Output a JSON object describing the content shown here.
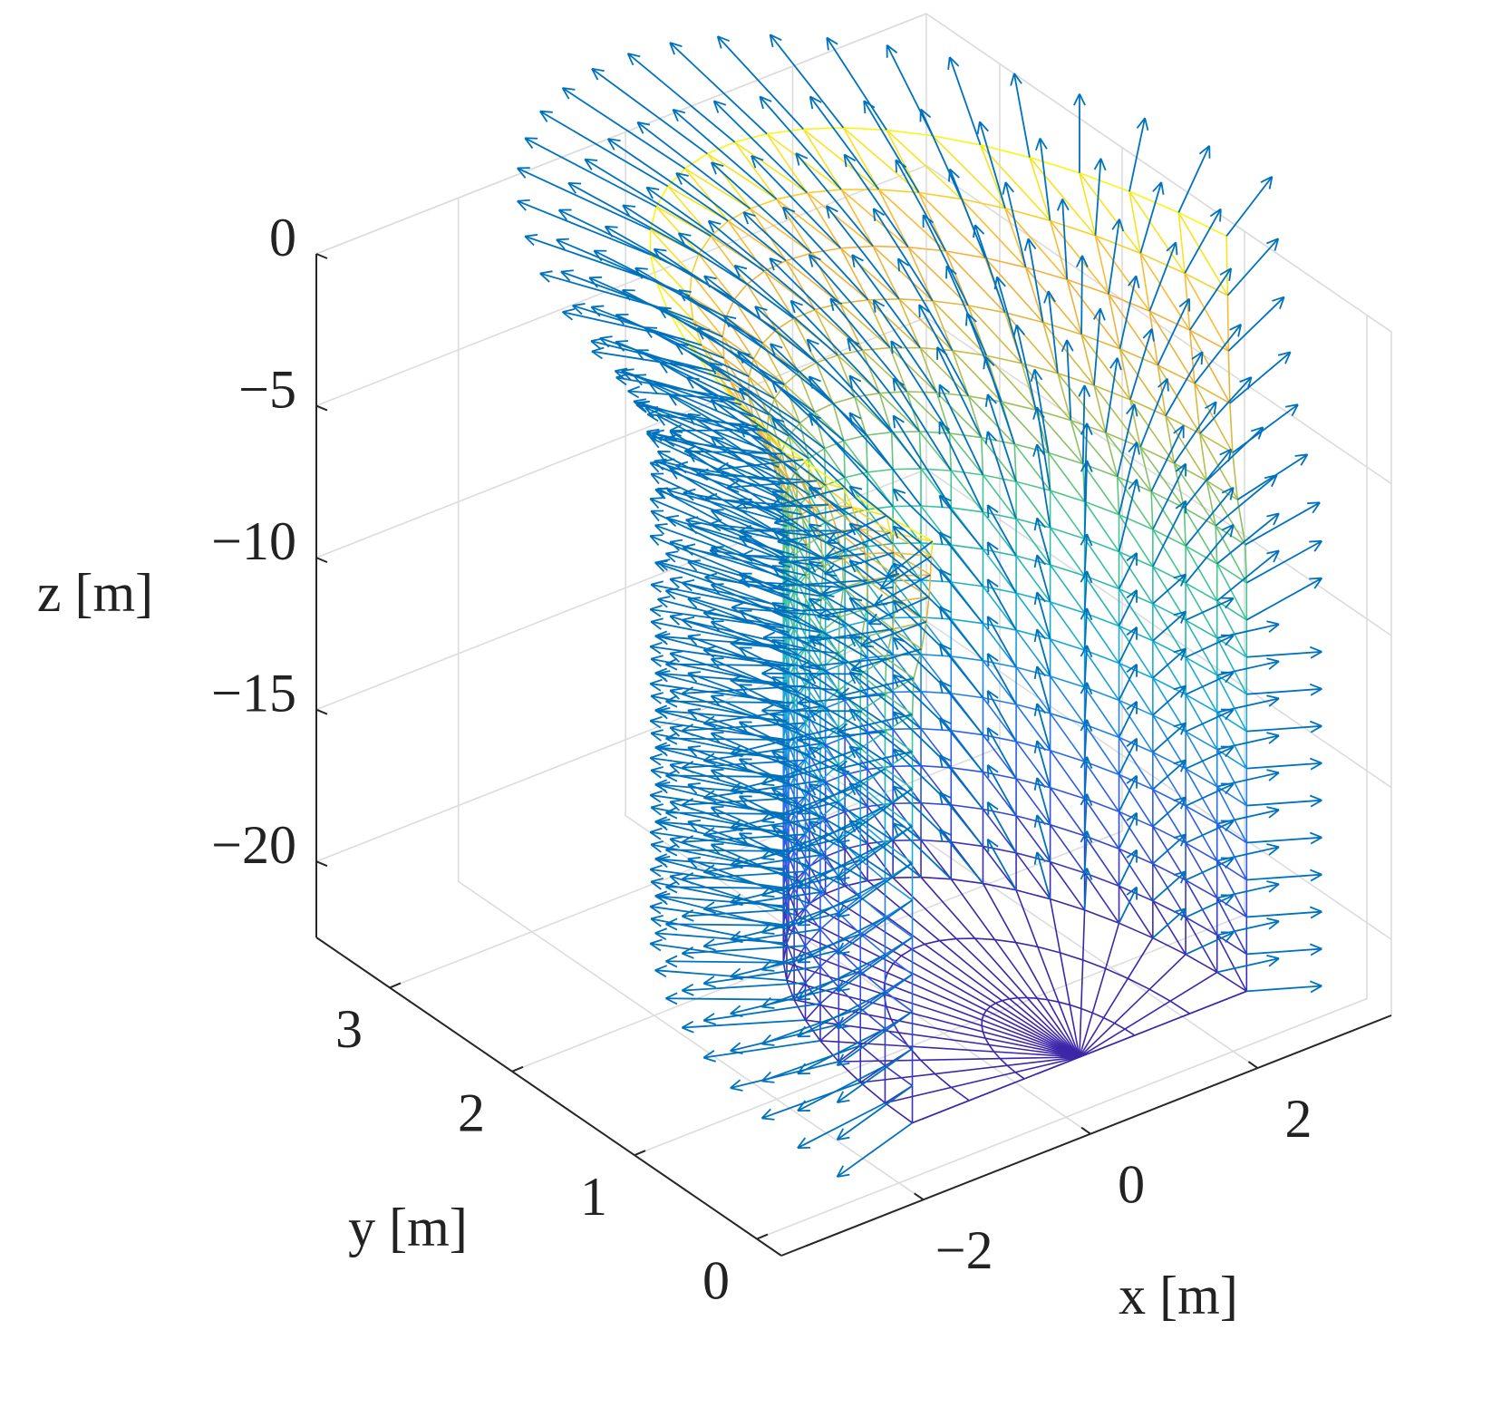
{
  "chart_data": {
    "type": "surface",
    "xlabel": "x [m]",
    "ylabel": "y [m]",
    "zlabel": "z [m]",
    "xlim": [
      -3.7,
      3.6
    ],
    "ylim": [
      -0.2,
      3.6
    ],
    "zlim": [
      -22.5,
      0
    ],
    "xticks": [
      {
        "value": -2,
        "label": "−2"
      },
      0,
      2
    ],
    "yticks": [
      0,
      1,
      2,
      3
    ],
    "zticks": [
      {
        "value": -20,
        "label": "−20"
      },
      {
        "value": -15,
        "label": "−15"
      },
      {
        "value": -10,
        "label": "−10"
      },
      {
        "value": -5,
        "label": "−5"
      },
      0
    ],
    "grid": true,
    "colormap": "parula",
    "quiver_color": "#0072bd"
  }
}
